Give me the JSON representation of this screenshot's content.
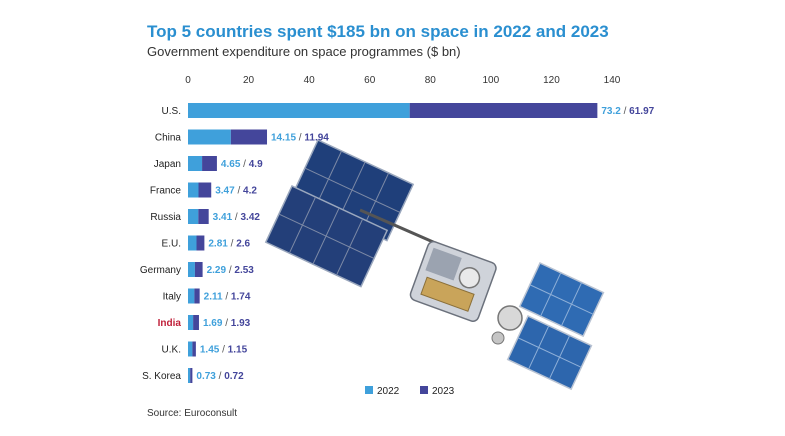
{
  "chart_data": {
    "type": "bar",
    "title": "Top 5 countries spent $185 bn on space in 2022 and 2023",
    "subtitle": "Government expenditure on space programmes ($ bn)",
    "source": "Source: Euroconsult",
    "categories": [
      "U.S.",
      "China",
      "Japan",
      "France",
      "Russia",
      "E.U.",
      "Germany",
      "Italy",
      "India",
      "U.K.",
      "S. Korea"
    ],
    "highlight": "India",
    "series": [
      {
        "name": "2022",
        "color": "#3fa0db",
        "values": [
          73.2,
          14.15,
          4.65,
          3.47,
          3.41,
          2.81,
          2.29,
          2.11,
          1.69,
          1.45,
          0.73
        ]
      },
      {
        "name": "2023",
        "color": "#44469b",
        "values": [
          61.97,
          11.94,
          4.9,
          4.2,
          3.42,
          2.6,
          2.53,
          1.74,
          1.93,
          1.15,
          0.72
        ]
      }
    ],
    "value_labels": [
      [
        "73.2",
        "61.97"
      ],
      [
        "14.15",
        "11.94"
      ],
      [
        "4.65",
        "4.9"
      ],
      [
        "3.47",
        "4.2"
      ],
      [
        "3.41",
        "3.42"
      ],
      [
        "2.81",
        "2.6"
      ],
      [
        "2.29",
        "2.53"
      ],
      [
        "2.11",
        "1.74"
      ],
      [
        "1.69",
        "1.93"
      ],
      [
        "1.45",
        "1.15"
      ],
      [
        "0.73",
        "0.72"
      ]
    ],
    "xticks": [
      0,
      20,
      40,
      60,
      80,
      100,
      120,
      140
    ],
    "xlim": [
      0,
      140
    ],
    "stacked": true,
    "orientation": "horizontal",
    "legend_position": "bottom",
    "highlight_color": "#c0203a"
  }
}
